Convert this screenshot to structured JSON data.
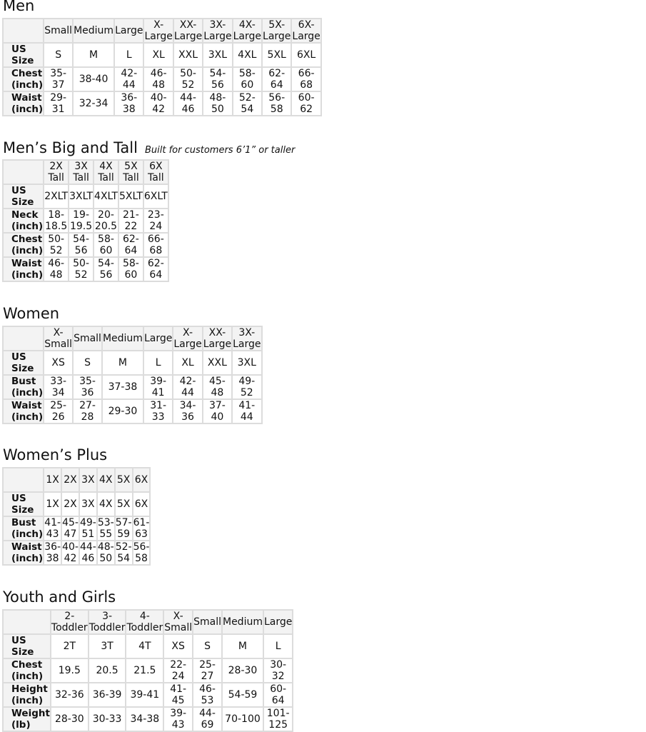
{
  "sections": [
    {
      "title": "Men",
      "note": "",
      "headers": [
        "Small",
        "Medium",
        "Large",
        "X-Large",
        "XX-Large",
        "3X-Large",
        "4X-Large",
        "5X-Large",
        "6X-Large"
      ],
      "rows": [
        {
          "label": "US Size",
          "values": [
            "S",
            "M",
            "L",
            "XL",
            "XXL",
            "3XL",
            "4XL",
            "5XL",
            "6XL"
          ]
        },
        {
          "label": "Chest (inch)",
          "values": [
            "35-37",
            "38-40",
            "42-44",
            "46-48",
            "50-52",
            "54-56",
            "58-60",
            "62-64",
            "66-68"
          ]
        },
        {
          "label": "Waist (inch)",
          "values": [
            "29-31",
            "32-34",
            "36-38",
            "40-42",
            "44-46",
            "48-50",
            "52-54",
            "56-58",
            "60-62"
          ]
        }
      ]
    },
    {
      "title": "Men’s Big and Tall",
      "note": "Built for customers 6’1” or taller",
      "headers": [
        "2X Tall",
        "3X Tall",
        "4X Tall",
        "5X Tall",
        "6X Tall"
      ],
      "rows": [
        {
          "label": "US Size",
          "values": [
            "2XLT",
            "3XLT",
            "4XLT",
            "5XLT",
            "6XLT"
          ]
        },
        {
          "label": "Neck (inch)",
          "values": [
            "18-18.5",
            "19-19.5",
            "20-20.5",
            "21-22",
            "23-24"
          ]
        },
        {
          "label": "Chest (inch)",
          "values": [
            "50-52",
            "54-56",
            "58-60",
            "62-64",
            "66-68"
          ]
        },
        {
          "label": "Waist (inch)",
          "values": [
            "46-48",
            "50-52",
            "54-56",
            "58-60",
            "62-64"
          ]
        }
      ]
    },
    {
      "title": "Women",
      "note": "",
      "headers": [
        "X-Small",
        "Small",
        "Medium",
        "Large",
        "X-Large",
        "XX-Large",
        "3X-Large"
      ],
      "rows": [
        {
          "label": "US Size",
          "values": [
            "XS",
            "S",
            "M",
            "L",
            "XL",
            "XXL",
            "3XL"
          ]
        },
        {
          "label": "Bust (inch)",
          "values": [
            "33-34",
            "35-36",
            "37-38",
            "39-41",
            "42-44",
            "45-48",
            "49-52"
          ]
        },
        {
          "label": "Waist (inch)",
          "values": [
            "25-26",
            "27-28",
            "29-30",
            "31-33",
            "34-36",
            "37-40",
            "41-44"
          ]
        }
      ]
    },
    {
      "title": "Women’s  Plus",
      "note": "",
      "headers": [
        "1X",
        "2X",
        "3X",
        "4X",
        "5X",
        "6X"
      ],
      "rows": [
        {
          "label": "US Size",
          "values": [
            "1X",
            "2X",
            "3X",
            "4X",
            "5X",
            "6X"
          ]
        },
        {
          "label": "Bust (inch)",
          "values": [
            "41-43",
            "45-47",
            "49-51",
            "53-55",
            "57-59",
            "61-63"
          ]
        },
        {
          "label": "Waist (inch)",
          "values": [
            "36-38",
            "40-42",
            "44-46",
            "48-50",
            "52-54",
            "56-58"
          ]
        }
      ]
    },
    {
      "title": "Youth and Girls",
      "note": "",
      "headers": [
        "2-Toddler",
        "3-Toddler",
        "4-Toddler",
        "X-Small",
        "Small",
        "Medium",
        "Large"
      ],
      "rows": [
        {
          "label": "US Size",
          "values": [
            "2T",
            "3T",
            "4T",
            "XS",
            "S",
            "M",
            "L"
          ]
        },
        {
          "label": "Chest (inch)",
          "values": [
            "19.5",
            "20.5",
            "21.5",
            "22-24",
            "25-27",
            "28-30",
            "30-32"
          ]
        },
        {
          "label": "Height (inch)",
          "values": [
            "32-36",
            "36-39",
            "39-41",
            "41-45",
            "46-53",
            "54-59",
            "60-64"
          ]
        },
        {
          "label": "Weight (lb)",
          "values": [
            "28-30",
            "30-33",
            "34-38",
            "39-43",
            "44-69",
            "70-100",
            "101-125"
          ]
        }
      ]
    }
  ]
}
